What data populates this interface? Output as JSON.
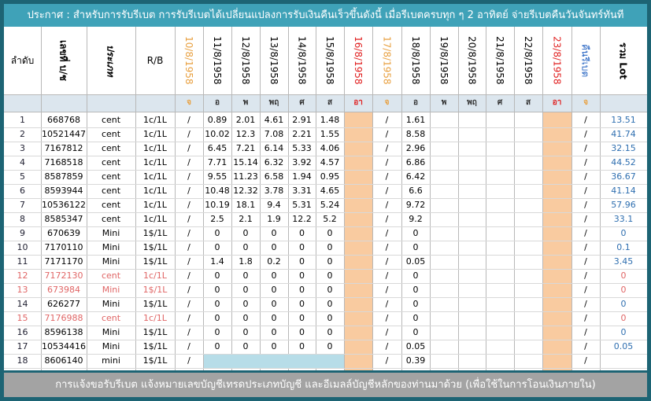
{
  "header": {
    "title": "ประกาศ : สำหรับการรับรีเบต  การรับรีเบตได้เปลี่ยนแปลงการรับเงินคืนเร็วขึ้นดังนี้   เมื่อรีเบตครบทุก ๆ 2 อาทิตย์ จ่ายรีเบตคืนวันจันทร์ทันที"
  },
  "table": {
    "columns": [
      {
        "label": "ลำดับ"
      },
      {
        "label": "เลขที่ บ/ช"
      },
      {
        "label": "ประเภท"
      },
      {
        "label": "R/B"
      },
      {
        "label": "10/8/1958",
        "color": "#e8a040"
      },
      {
        "label": "11/8/1958"
      },
      {
        "label": "12/8/1958"
      },
      {
        "label": "13/8/1958"
      },
      {
        "label": "14/8/1958"
      },
      {
        "label": "15/8/1958"
      },
      {
        "label": "16/8/1958",
        "color": "#e02020"
      },
      {
        "label": "17/8/1958",
        "color": "#e8a040"
      },
      {
        "label": "18/8/1958"
      },
      {
        "label": "19/8/1958"
      },
      {
        "label": "20/8/1958"
      },
      {
        "label": "21/8/1958"
      },
      {
        "label": "22/8/1958"
      },
      {
        "label": "23/8/1958",
        "color": "#e02020"
      },
      {
        "label": "คืนรีเบต",
        "color": "#2060c0"
      },
      {
        "label": "รวม Lot"
      }
    ],
    "weekdays": [
      {
        "label": "จ",
        "color": "#e8a040"
      },
      {
        "label": "อ"
      },
      {
        "label": "พ"
      },
      {
        "label": "พฤ"
      },
      {
        "label": "ศ"
      },
      {
        "label": "ส"
      },
      {
        "label": "อา",
        "color": "#e02020"
      },
      {
        "label": "จ",
        "color": "#e8a040"
      },
      {
        "label": "อ"
      },
      {
        "label": "พ"
      },
      {
        "label": "พฤ"
      },
      {
        "label": "ศ"
      },
      {
        "label": "ส"
      },
      {
        "label": "อา",
        "color": "#e02020"
      },
      {
        "label": "จ",
        "color": "#e8a040"
      }
    ],
    "check": "/",
    "rows": [
      {
        "no": "1",
        "account": "668768",
        "type": "cent",
        "rb": "1c/1L",
        "days": [
          "0.89",
          "2.01",
          "4.61",
          "2.91",
          "1.48"
        ],
        "d18": "1.61",
        "total": "13.51"
      },
      {
        "no": "2",
        "account": "10521447",
        "type": "cent",
        "rb": "1c/1L",
        "days": [
          "10.02",
          "12.3",
          "7.08",
          "2.21",
          "1.55"
        ],
        "d18": "8.58",
        "total": "41.74"
      },
      {
        "no": "3",
        "account": "7167812",
        "type": "cent",
        "rb": "1c/1L",
        "days": [
          "6.45",
          "7.21",
          "6.14",
          "5.33",
          "4.06"
        ],
        "d18": "2.96",
        "total": "32.15"
      },
      {
        "no": "4",
        "account": "7168518",
        "type": "cent",
        "rb": "1c/1L",
        "days": [
          "7.71",
          "15.14",
          "6.32",
          "3.92",
          "4.57"
        ],
        "d18": "6.86",
        "total": "44.52"
      },
      {
        "no": "5",
        "account": "8587859",
        "type": "cent",
        "rb": "1c/1L",
        "days": [
          "9.55",
          "11.23",
          "6.58",
          "1.94",
          "0.95"
        ],
        "d18": "6.42",
        "total": "36.67"
      },
      {
        "no": "6",
        "account": "8593944",
        "type": "cent",
        "rb": "1c/1L",
        "days": [
          "10.48",
          "12.32",
          "3.78",
          "3.31",
          "4.65"
        ],
        "d18": "6.6",
        "total": "41.14"
      },
      {
        "no": "7",
        "account": "10536122",
        "type": "cent",
        "rb": "1c/1L",
        "days": [
          "10.19",
          "18.1",
          "9.4",
          "5.31",
          "5.24"
        ],
        "d18": "9.72",
        "total": "57.96"
      },
      {
        "no": "8",
        "account": "8585347",
        "type": "cent",
        "rb": "1c/1L",
        "days": [
          "2.5",
          "2.1",
          "1.9",
          "12.2",
          "5.2"
        ],
        "d18": "9.2",
        "total": "33.1"
      },
      {
        "no": "9",
        "account": "670639",
        "type": "Mini",
        "rb": "1$/1L",
        "days": [
          "0",
          "0",
          "0",
          "0",
          "0"
        ],
        "d18": "0",
        "total": "0"
      },
      {
        "no": "10",
        "account": "7170110",
        "type": "Mini",
        "rb": "1$/1L",
        "days": [
          "0",
          "0",
          "0",
          "0",
          "0"
        ],
        "d18": "0",
        "total": "0.1"
      },
      {
        "no": "11",
        "account": "7171170",
        "type": "Mini",
        "rb": "1$/1L",
        "days": [
          "1.4",
          "1.8",
          "0.2",
          "0",
          "0"
        ],
        "d18": "0.05",
        "total": "3.45"
      },
      {
        "no": "12",
        "account": "7172130",
        "type": "cent",
        "rb": "1c/1L",
        "days": [
          "0",
          "0",
          "0",
          "0",
          "0"
        ],
        "d18": "0",
        "total": "0",
        "color": "#e06666"
      },
      {
        "no": "13",
        "account": "673984",
        "type": "Mini",
        "rb": "1$/1L",
        "days": [
          "0",
          "0",
          "0",
          "0",
          "0"
        ],
        "d18": "0",
        "total": "0",
        "color": "#e06666"
      },
      {
        "no": "14",
        "account": "626277",
        "type": "Mini",
        "rb": "1$/1L",
        "days": [
          "0",
          "0",
          "0",
          "0",
          "0"
        ],
        "d18": "0",
        "total": "0"
      },
      {
        "no": "15",
        "account": "7176988",
        "type": "cent",
        "rb": "1c/1L",
        "days": [
          "0",
          "0",
          "0",
          "0",
          "0"
        ],
        "d18": "0",
        "total": "0",
        "color": "#e06666"
      },
      {
        "no": "16",
        "account": "8596138",
        "type": "Mini",
        "rb": "1$/1L",
        "days": [
          "0",
          "0",
          "0",
          "0",
          "0"
        ],
        "d18": "0",
        "total": "0"
      },
      {
        "no": "17",
        "account": "10534416",
        "type": "Mini",
        "rb": "1$/1L",
        "days": [
          "0",
          "0",
          "0",
          "0",
          "0"
        ],
        "d18": "0.05",
        "total": "0.05"
      },
      {
        "no": "18",
        "account": "8606140",
        "type": "mini",
        "rb": "1$/1L",
        "days": [],
        "d18": "0.39"
      }
    ]
  },
  "footer": {
    "text": "การแจ้งขอรับรีเบต  แจ้งหมายเลขบัญชีเทรดประเภทบัญชี และอีเมลล์บัญชีหลักของท่านมาด้วย   (เพื่อใช้ในการโอนเงินภายใน)"
  }
}
